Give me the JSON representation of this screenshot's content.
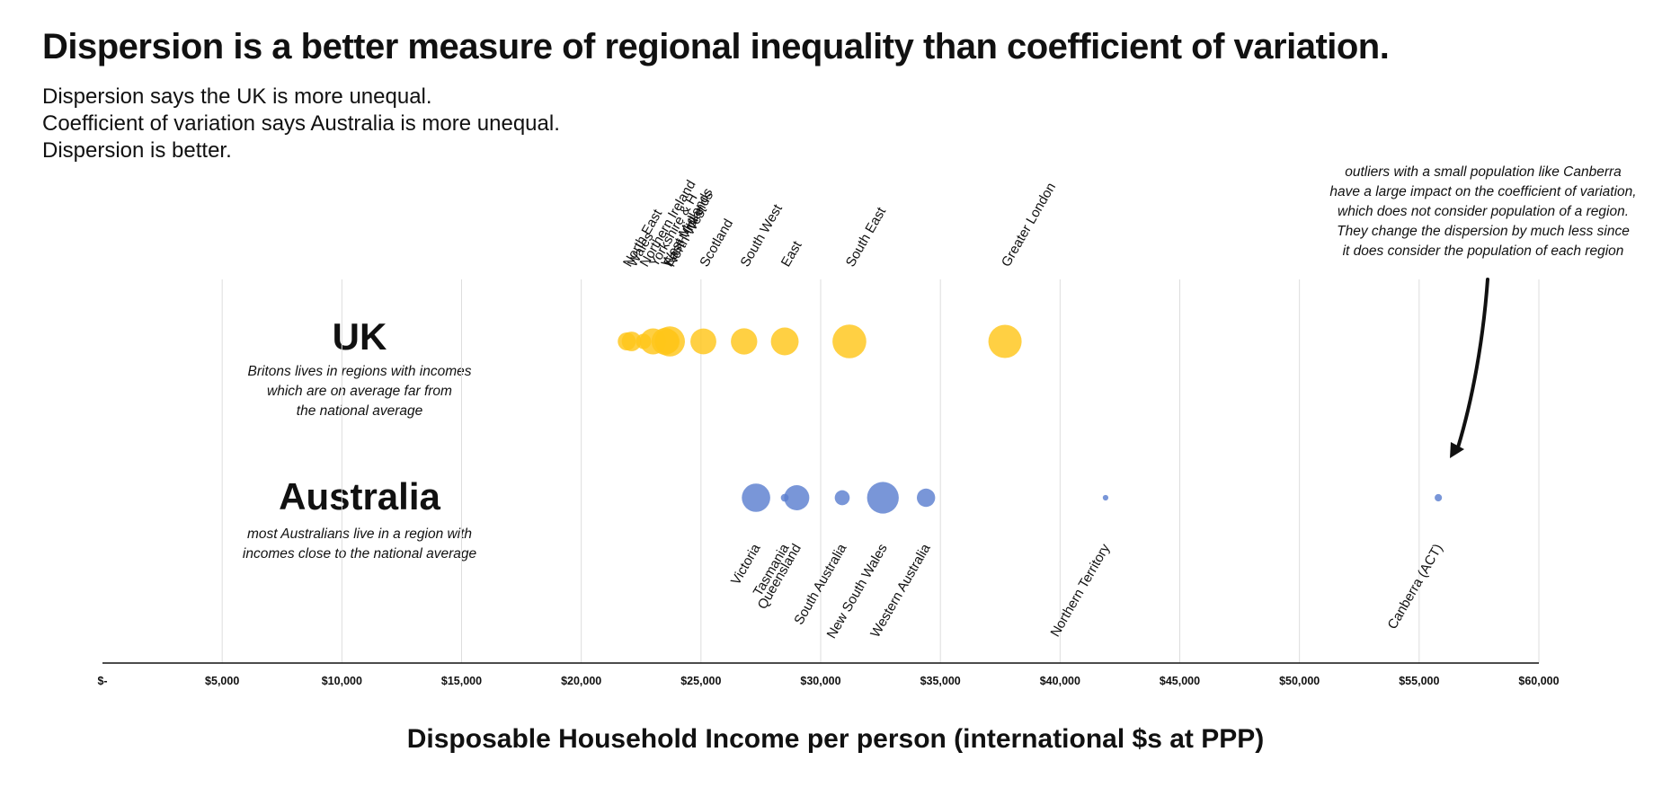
{
  "title": "Dispersion is a better measure of regional inequality than coefficient of variation.",
  "subtitle": [
    "Dispersion says the UK is more unequal.",
    "Coefficient of variation says Australia is more unequal.",
    "Dispersion is better."
  ],
  "annotation": [
    "outliers with a small population like Canberra",
    "have a large impact on the coefficient of variation,",
    "which does not consider population of a region.",
    "They change the dispersion by much less since",
    "it does consider the population of each region"
  ],
  "rows": {
    "uk": {
      "label": "UK",
      "note": [
        "Britons lives in regions with incomes",
        "which are on average far from",
        "the national average"
      ]
    },
    "australia": {
      "label": "Australia",
      "note": [
        "most Australians live in a region with",
        "incomes close to the national average"
      ]
    }
  },
  "colors": {
    "uk": "#FFC61A",
    "australia": "#5B7FCF",
    "axis": "#111111",
    "grid": "#dddddd"
  },
  "chart_data": {
    "type": "scatter",
    "xlabel": "Disposable Household Income per person (international $s at PPP)",
    "xlim": [
      0,
      60000
    ],
    "xticks": [
      0,
      5000,
      10000,
      15000,
      20000,
      25000,
      30000,
      35000,
      40000,
      45000,
      50000,
      55000,
      60000
    ],
    "xtick_labels": [
      "$-",
      "$5,000",
      "$10,000",
      "$15,000",
      "$20,000",
      "$25,000",
      "$30,000",
      "$35,000",
      "$40,000",
      "$45,000",
      "$50,000",
      "$55,000",
      "$60,000"
    ],
    "grid": true,
    "series": [
      {
        "name": "UK",
        "points": [
          {
            "label": "North East",
            "x": 21900,
            "size": 2.6
          },
          {
            "label": "Wales",
            "x": 22100,
            "size": 3.1
          },
          {
            "label": "Northern Ireland",
            "x": 22600,
            "size": 1.9
          },
          {
            "label": "Yorkshire & H",
            "x": 23000,
            "size": 5.5
          },
          {
            "label": "West Midlands",
            "x": 23500,
            "size": 5.9
          },
          {
            "label": "East Midlands",
            "x": 23600,
            "size": 4.8
          },
          {
            "label": "North West",
            "x": 23700,
            "size": 7.3
          },
          {
            "label": "Scotland",
            "x": 25100,
            "size": 5.4
          },
          {
            "label": "South West",
            "x": 26800,
            "size": 5.6
          },
          {
            "label": "East",
            "x": 28500,
            "size": 6.2
          },
          {
            "label": "South East",
            "x": 31200,
            "size": 9.2
          },
          {
            "label": "Greater London",
            "x": 37700,
            "size": 8.9
          }
        ]
      },
      {
        "name": "Australia",
        "points": [
          {
            "label": "Victoria",
            "x": 27300,
            "size": 6.5
          },
          {
            "label": "Tasmania",
            "x": 28500,
            "size": 0.5
          },
          {
            "label": "Queensland",
            "x": 29000,
            "size": 5.1
          },
          {
            "label": "South Australia",
            "x": 30900,
            "size": 1.8
          },
          {
            "label": "New South Wales",
            "x": 32600,
            "size": 8.1
          },
          {
            "label": "Western Australia",
            "x": 34400,
            "size": 2.7
          },
          {
            "label": "Northern Territory",
            "x": 41900,
            "size": 0.25
          },
          {
            "label": "Canberra (ACT)",
            "x": 55800,
            "size": 0.43
          }
        ]
      }
    ]
  }
}
